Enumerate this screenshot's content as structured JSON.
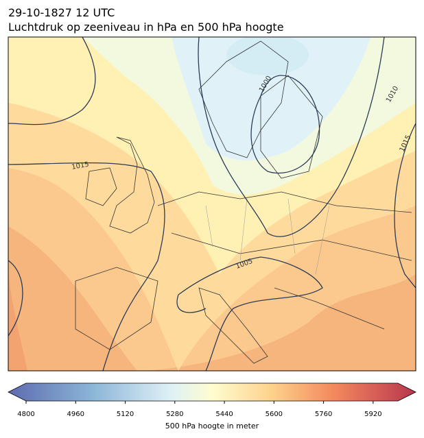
{
  "header": {
    "date": "29-10-1827 12 UTC",
    "title": "Luchtdruk op zeeniveau in hPa en 500 hPa hoogte"
  },
  "contour_labels": [
    "1000",
    "1010",
    "1015",
    "1015",
    "1005"
  ],
  "colorbar": {
    "label": "500 hPa hoogte in meter",
    "range": [
      4800,
      6000
    ],
    "ticks": [
      4800,
      4960,
      5120,
      5280,
      5440,
      5600,
      5760,
      5920
    ]
  }
}
